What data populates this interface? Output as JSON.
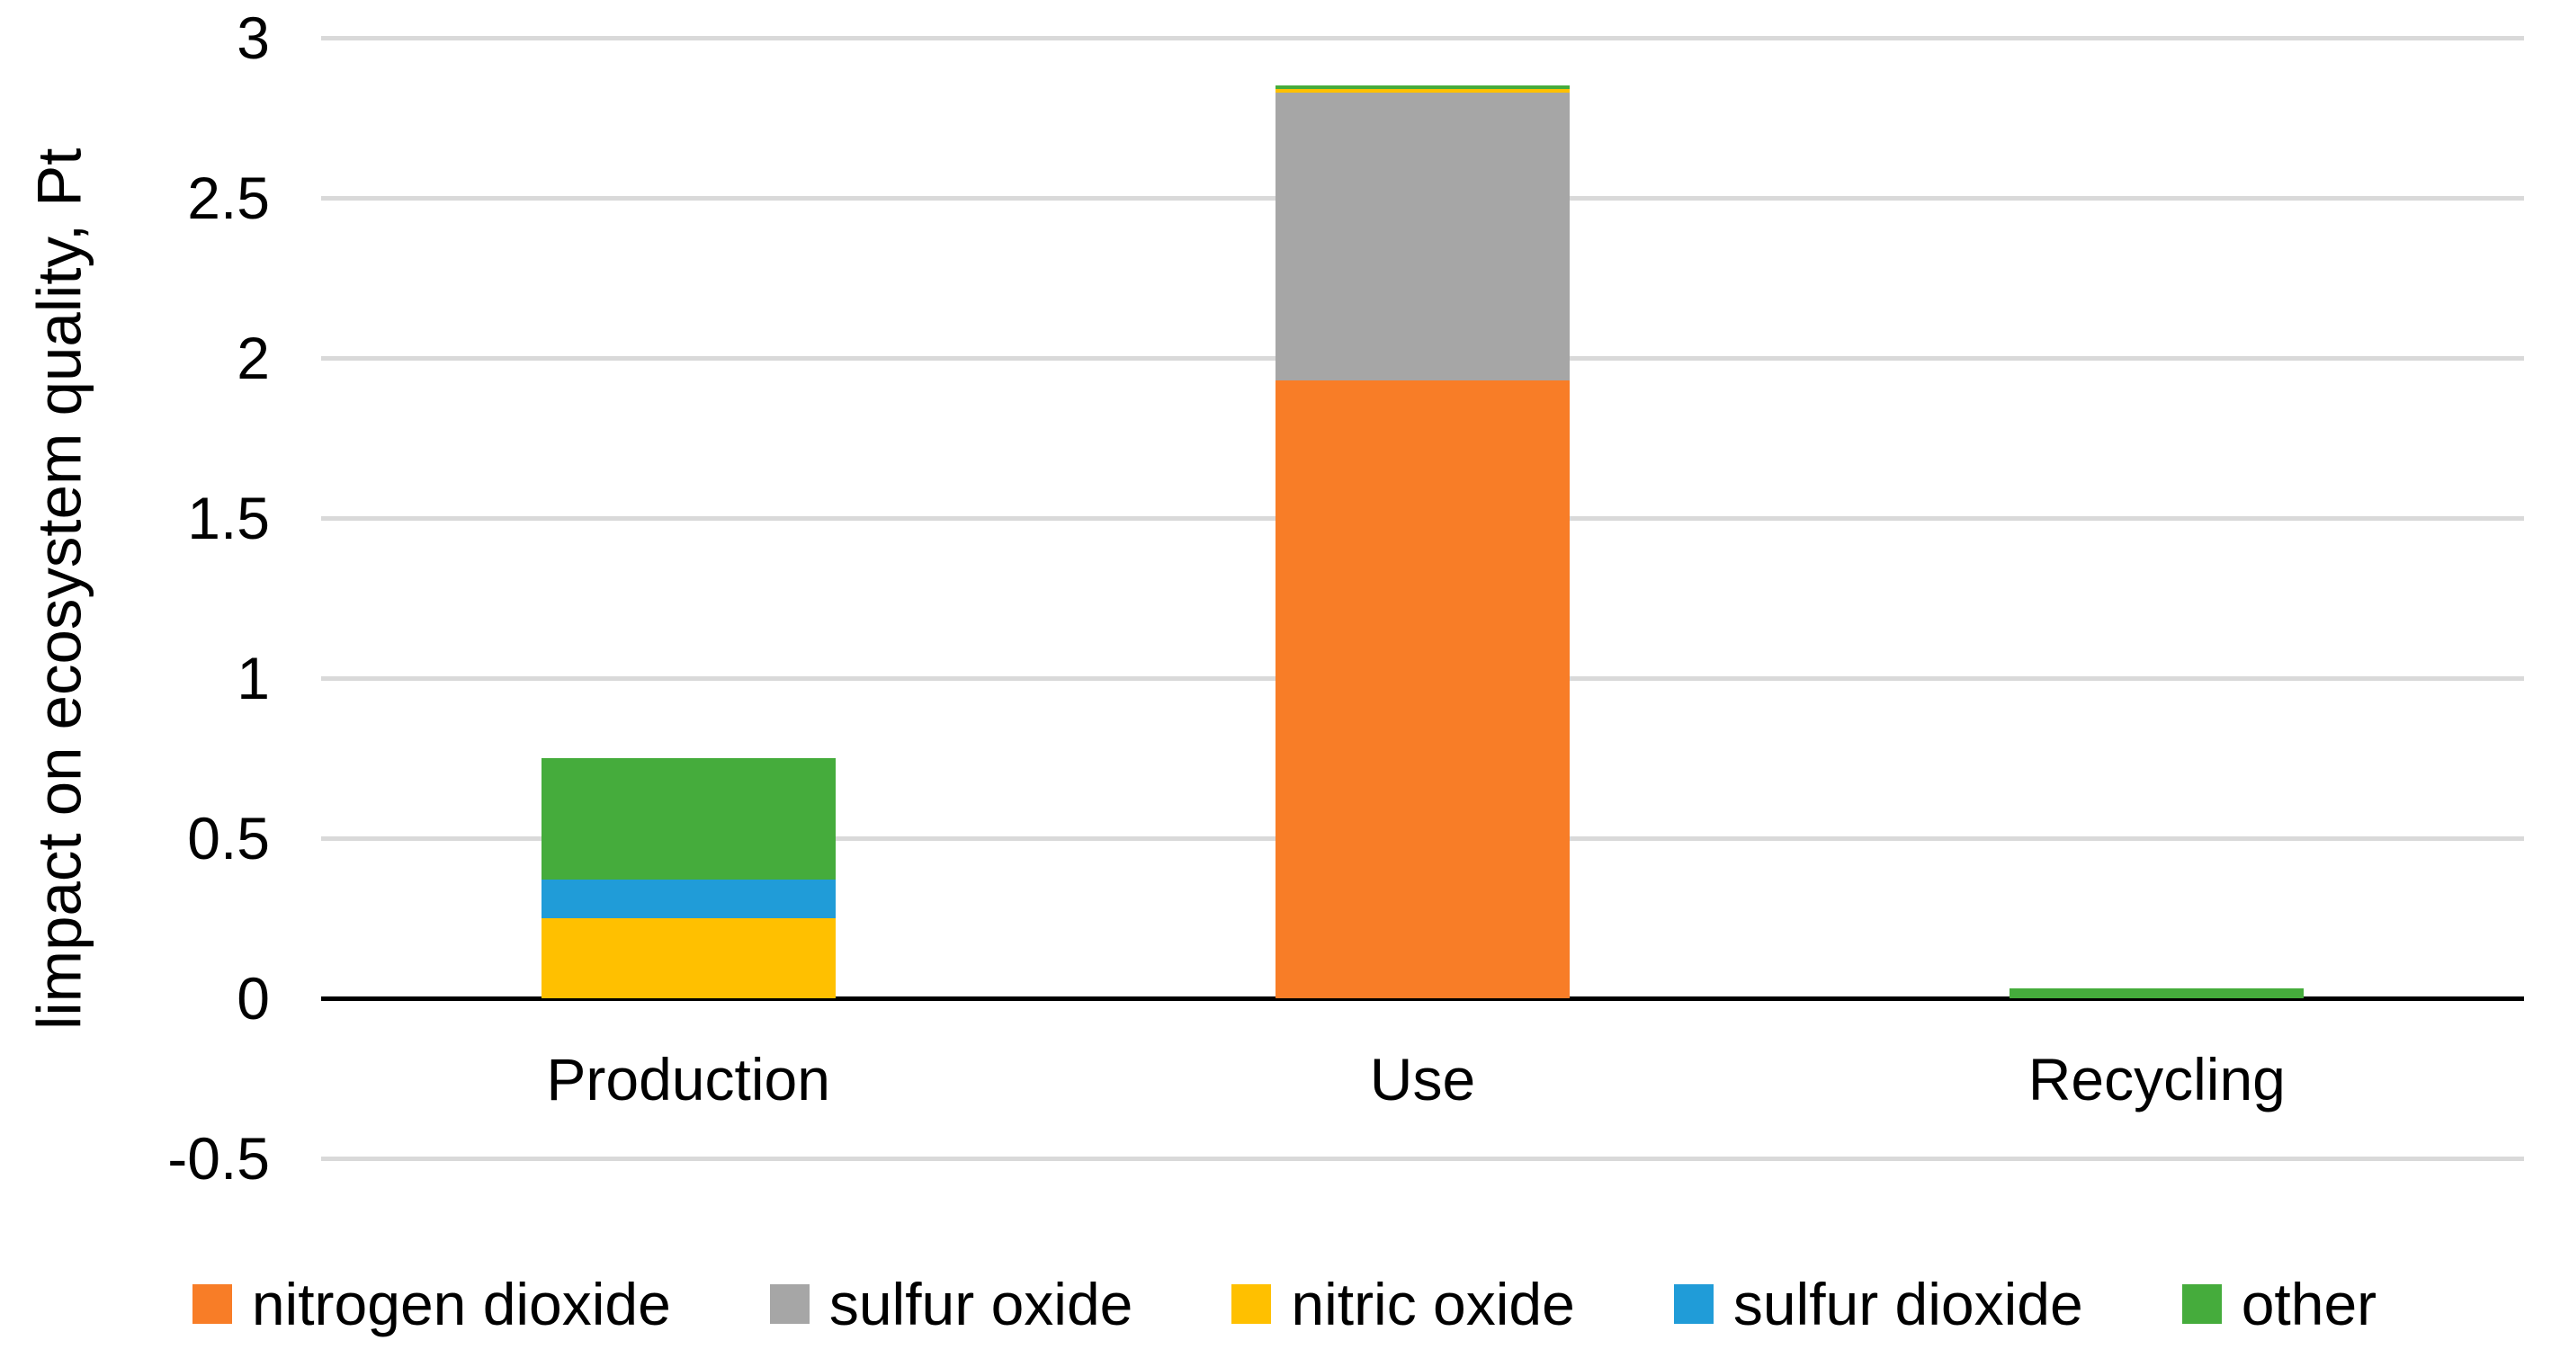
{
  "chart_data": {
    "type": "bar",
    "stacked": true,
    "title": "",
    "xlabel": "",
    "ylabel": "limpact on ecosystem quality, Pt",
    "categories": [
      "Production",
      "Use",
      "Recycling"
    ],
    "series": [
      {
        "name": "nitrogen dioxide",
        "color": "#F87D27",
        "values": [
          0,
          1.93,
          0
        ]
      },
      {
        "name": "sulfur oxide",
        "color": "#A6A6A6",
        "values": [
          0,
          0.9,
          0
        ]
      },
      {
        "name": "nitric oxide",
        "color": "#FFC000",
        "values": [
          0.25,
          0.01,
          0
        ]
      },
      {
        "name": "sulfur dioxide",
        "color": "#209CD8",
        "values": [
          0.12,
          0,
          0
        ]
      },
      {
        "name": "other",
        "color": "#45AC3C",
        "values": [
          0.38,
          0.01,
          0.03
        ]
      }
    ],
    "ylim": [
      -0.5,
      3
    ],
    "yticks": [
      3,
      2.5,
      2,
      1.5,
      1,
      0.5,
      0,
      -0.5
    ],
    "grid": "horizontal",
    "gridline_color": "#D9D9D9",
    "zero_line_color": "#000000",
    "legend_position": "bottom",
    "background_color": "#FFFFFF"
  }
}
